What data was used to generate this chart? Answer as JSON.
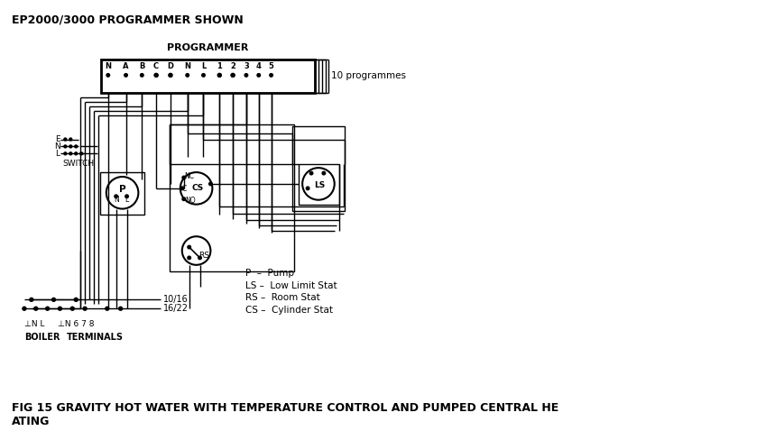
{
  "title": "EP2000/3000 PROGRAMMER SHOWN",
  "programmer_label": "PROGRAMMER",
  "programmes_label": "10 programmes",
  "terminal_labels": [
    "N",
    "A",
    "B",
    "C",
    "D",
    "N",
    "L",
    "1",
    "2",
    "3",
    "4",
    "5"
  ],
  "legend_items": [
    "P  –  Pump",
    "LS –  Low Limit Stat",
    "RS –  Room Stat",
    "CS –  Cylinder Stat"
  ],
  "bottom_label1": "10/16",
  "bottom_label2": "16/22",
  "boiler_label": "BOILER",
  "terminals_label": "TERMINALS",
  "switch_label": "SWITCH",
  "enl_labels": [
    "E",
    "N",
    "L"
  ],
  "fig_caption_line1": "FIG 15 GRAVITY HOT WATER WITH TEMPERATURE CONTROL AND PUMPED CENTRAL HE",
  "fig_caption_line2": "ATING",
  "bg_color": "#ffffff",
  "line_color": "#000000",
  "fig_width": 8.59,
  "fig_height": 4.78,
  "dpi": 100
}
